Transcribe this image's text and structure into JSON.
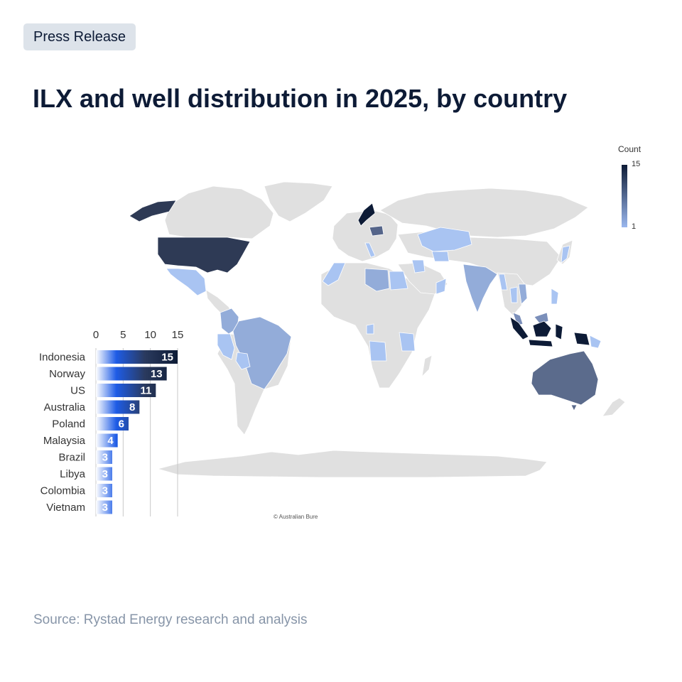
{
  "header": {
    "badge": "Press Release",
    "title": "ILX and well distribution in 2025, by country"
  },
  "legend": {
    "title": "Count",
    "max": "15",
    "min": "1",
    "color_high": "#0d1b36",
    "color_low": "#9ab7ee"
  },
  "map": {
    "attribution": "© Australian Bure",
    "land_color": "#e0e0e0",
    "regions": [
      {
        "name": "Indonesia",
        "count": 15
      },
      {
        "name": "Norway",
        "count": 13
      },
      {
        "name": "US",
        "count": 11
      },
      {
        "name": "Australia",
        "count": 8
      },
      {
        "name": "Poland",
        "count": 6
      },
      {
        "name": "Malaysia",
        "count": 4
      },
      {
        "name": "Brazil",
        "count": 3
      },
      {
        "name": "Libya",
        "count": 3
      },
      {
        "name": "Colombia",
        "count": 3
      },
      {
        "name": "Vietnam",
        "count": 3
      }
    ]
  },
  "chart_data": {
    "type": "bar",
    "orientation": "horizontal",
    "categories": [
      "Indonesia",
      "Norway",
      "US",
      "Australia",
      "Poland",
      "Malaysia",
      "Brazil",
      "Libya",
      "Colombia",
      "Vietnam"
    ],
    "values": [
      15,
      13,
      11,
      8,
      6,
      4,
      3,
      3,
      3,
      3
    ],
    "xticks": [
      "0",
      "5",
      "10",
      "15"
    ],
    "xlim": [
      0,
      15
    ],
    "grid": true,
    "gradient": [
      "#ffffff",
      "#1e5ce6",
      "#0d1b36"
    ]
  },
  "footer": {
    "source": "Source: Rystad Energy research and analysis"
  }
}
